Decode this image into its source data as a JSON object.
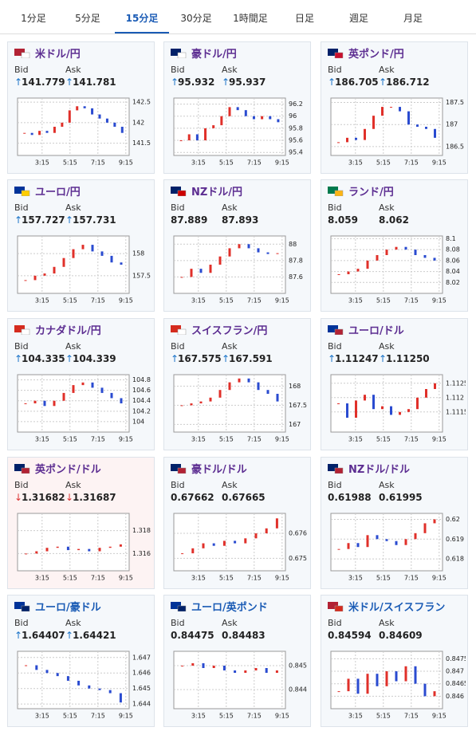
{
  "tabs": {
    "items": [
      "1分足",
      "5分足",
      "15分足",
      "30分足",
      "1時間足",
      "日足",
      "週足",
      "月足"
    ],
    "active": 2
  },
  "labels": {
    "bid": "Bid",
    "ask": "Ask"
  },
  "cards": [
    {
      "name": "米ドル/円",
      "visited": true,
      "arrow": "↑",
      "bid": "141.779",
      "ask": "141.781",
      "ylim": [
        141.2,
        142.6
      ],
      "yticks": [
        142.5,
        142,
        141.5
      ],
      "xticks": [
        "3:15",
        "5:15",
        "7:15",
        "9:15"
      ],
      "closes": [
        141.75,
        141.7,
        141.8,
        141.75,
        141.9,
        142.0,
        142.3,
        142.4,
        142.35,
        142.2,
        142.1,
        142.0,
        141.9,
        141.75
      ]
    },
    {
      "name": "豪ドル/円",
      "visited": true,
      "arrow": "↑",
      "bid": "95.932",
      "ask": "95.937",
      "ylim": [
        95.35,
        96.3
      ],
      "yticks": [
        96.2,
        96,
        95.8,
        95.6,
        95.4
      ],
      "xticks": [
        "3:15",
        "5:15",
        "7:15",
        "9:15"
      ],
      "closes": [
        95.6,
        95.7,
        95.6,
        95.8,
        95.85,
        96.0,
        96.15,
        96.1,
        96.0,
        95.95,
        96.0,
        95.95,
        95.9
      ]
    },
    {
      "name": "英ポンド/円",
      "visited": true,
      "arrow": "↑",
      "bid": "186.705",
      "ask": "186.712",
      "ylim": [
        186.3,
        187.6
      ],
      "yticks": [
        187.5,
        187,
        186.5
      ],
      "xticks": [
        "3:15",
        "5:15",
        "7:15",
        "9:15"
      ],
      "closes": [
        186.6,
        186.7,
        186.65,
        186.9,
        187.2,
        187.4,
        187.4,
        187.3,
        187.0,
        186.95,
        186.9,
        186.7
      ]
    },
    {
      "name": "ユーロ/円",
      "visited": true,
      "arrow": "↑",
      "bid": "157.727",
      "ask": "157.731",
      "ylim": [
        157.1,
        158.4
      ],
      "yticks": [
        158,
        157.5
      ],
      "xticks": [
        "3:15",
        "5:15",
        "7:15",
        "9:15"
      ],
      "closes": [
        157.4,
        157.5,
        157.55,
        157.7,
        157.9,
        158.1,
        158.2,
        158.05,
        157.95,
        157.8,
        157.75
      ]
    },
    {
      "name": "NZドル/円",
      "visited": true,
      "bid": "87.889",
      "ask": "87.893",
      "ylim": [
        87.4,
        88.1
      ],
      "yticks": [
        88,
        87.8,
        87.6
      ],
      "xticks": [
        "3:15",
        "5:15",
        "7:15",
        "9:15"
      ],
      "closes": [
        87.6,
        87.7,
        87.65,
        87.75,
        87.85,
        87.95,
        88.0,
        87.95,
        87.9,
        87.88,
        87.89
      ]
    },
    {
      "name": "ランド/円",
      "visited": true,
      "bid": "8.059",
      "ask": "8.062",
      "ylim": [
        8.0,
        8.105
      ],
      "yticks": [
        8.1,
        8.08,
        8.06,
        8.04,
        8.02
      ],
      "xticks": [
        "3:15",
        "5:15",
        "7:15",
        "9:15"
      ],
      "closes": [
        8.035,
        8.04,
        8.045,
        8.06,
        8.07,
        8.08,
        8.085,
        8.08,
        8.07,
        8.065,
        8.06
      ]
    },
    {
      "name": "カナダドル/円",
      "visited": true,
      "arrow": "↑",
      "bid": "104.335",
      "ask": "104.339",
      "ylim": [
        103.8,
        104.9
      ],
      "yticks": [
        104.8,
        104.6,
        104.4,
        104.2,
        104
      ],
      "xticks": [
        "3:15",
        "5:15",
        "7:15",
        "9:15"
      ],
      "closes": [
        104.35,
        104.4,
        104.3,
        104.4,
        104.55,
        104.7,
        104.75,
        104.65,
        104.55,
        104.45,
        104.35
      ]
    },
    {
      "name": "スイスフラン/円",
      "visited": true,
      "arrow": "↑",
      "bid": "167.575",
      "ask": "167.591",
      "ylim": [
        166.8,
        168.3
      ],
      "yticks": [
        168,
        167.5,
        167
      ],
      "xticks": [
        "3:15",
        "5:15",
        "7:15",
        "9:15"
      ],
      "closes": [
        167.5,
        167.55,
        167.6,
        167.7,
        167.9,
        168.1,
        168.2,
        168.1,
        167.9,
        167.8,
        167.6
      ]
    },
    {
      "name": "ユーロ/ドル",
      "visited": true,
      "arrow": "↑",
      "bid": "1.11247",
      "ask": "1.11250",
      "ylim": [
        1.1108,
        1.1128
      ],
      "yticks": [
        1.1125,
        1.112,
        1.1115
      ],
      "xticks": [
        "3:15",
        "5:15",
        "7:15",
        "9:15"
      ],
      "closes": [
        1.1118,
        1.1113,
        1.1119,
        1.1121,
        1.1116,
        1.1117,
        1.1114,
        1.1115,
        1.1116,
        1.112,
        1.1123,
        1.1125
      ]
    },
    {
      "name": "英ポンド/ドル",
      "visited": true,
      "alert": true,
      "arrow": "↓",
      "bid": "1.31682",
      "ask": "1.31687",
      "ylim": [
        1.3145,
        1.3195
      ],
      "yticks": [
        1.318,
        1.316
      ],
      "xticks": [
        "3:15",
        "5:15",
        "7:15",
        "9:15"
      ],
      "closes": [
        1.316,
        1.3162,
        1.3165,
        1.3166,
        1.3163,
        1.3164,
        1.3162,
        1.3165,
        1.3166,
        1.3168
      ]
    },
    {
      "name": "豪ドル/ドル",
      "visited": true,
      "bid": "0.67662",
      "ask": "0.67665",
      "ylim": [
        0.6745,
        0.6768
      ],
      "yticks": [
        0.676,
        0.675
      ],
      "xticks": [
        "3:15",
        "5:15",
        "7:15",
        "9:15"
      ],
      "closes": [
        0.6752,
        0.6754,
        0.6756,
        0.6755,
        0.6757,
        0.6756,
        0.6758,
        0.676,
        0.6762,
        0.6766
      ]
    },
    {
      "name": "NZドル/ドル",
      "visited": true,
      "bid": "0.61988",
      "ask": "0.61995",
      "ylim": [
        0.6174,
        0.6203
      ],
      "yticks": [
        0.62,
        0.619,
        0.618
      ],
      "xticks": [
        "3:15",
        "5:15",
        "7:15",
        "9:15"
      ],
      "closes": [
        0.6185,
        0.6188,
        0.6186,
        0.6192,
        0.619,
        0.6189,
        0.6187,
        0.619,
        0.6193,
        0.6198,
        0.62
      ]
    },
    {
      "name": "ユーロ/豪ドル",
      "visited": false,
      "arrow": "↑",
      "bid": "1.64407",
      "ask": "1.64421",
      "ylim": [
        1.6437,
        1.6474
      ],
      "yticks": [
        1.647,
        1.646,
        1.645,
        1.644
      ],
      "xticks": [
        "3:15",
        "5:15",
        "7:15",
        "9:15"
      ],
      "closes": [
        1.6465,
        1.6462,
        1.646,
        1.6458,
        1.6455,
        1.6452,
        1.645,
        1.6449,
        1.6447,
        1.6441
      ]
    },
    {
      "name": "ユーロ/英ポンド",
      "visited": false,
      "bid": "0.84475",
      "ask": "0.84483",
      "ylim": [
        0.8432,
        0.8456
      ],
      "yticks": [
        0.845,
        0.844
      ],
      "xticks": [
        "3:15",
        "5:15",
        "7:15",
        "9:15"
      ],
      "closes": [
        0.845,
        0.8451,
        0.8449,
        0.845,
        0.8448,
        0.8447,
        0.8448,
        0.8449,
        0.8447,
        0.8448
      ]
    },
    {
      "name": "米ドル/スイスフラン",
      "visited": false,
      "bid": "0.84594",
      "ask": "0.84609",
      "ylim": [
        0.8455,
        0.8478
      ],
      "yticks": [
        0.8475,
        0.847,
        0.8465,
        0.846
      ],
      "xticks": [
        "3:15",
        "5:15",
        "7:15",
        "9:15"
      ],
      "closes": [
        0.8462,
        0.8467,
        0.8461,
        0.8469,
        0.8464,
        0.847,
        0.8466,
        0.8472,
        0.8465,
        0.846,
        0.8462
      ]
    }
  ]
}
